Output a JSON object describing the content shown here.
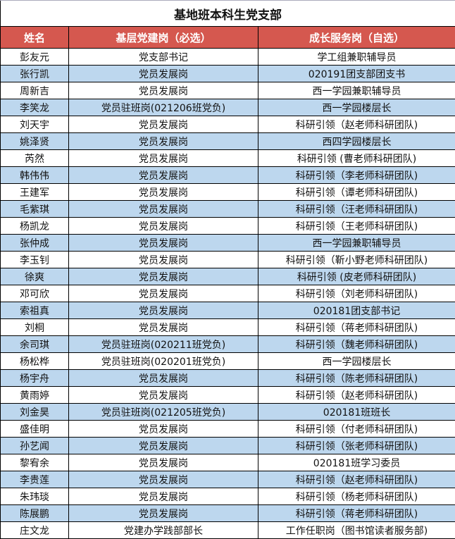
{
  "title": "基地班本科生党支部",
  "headers": [
    "姓名",
    "基层党建岗（必选）",
    "成长服务岗（自选）"
  ],
  "colors": {
    "header_bg": "#d5584f",
    "alt_row_bg": "#bdd7ee"
  },
  "rows": [
    [
      "彭友元",
      "党支部书记",
      "学工组兼职辅导员"
    ],
    [
      "张行凯",
      "党员发展岗",
      "020191团支部团支书"
    ],
    [
      "周新吉",
      "党员发展岗",
      "西一学园兼职辅导员"
    ],
    [
      "李笑龙",
      "党员驻班岗(021206班党负)",
      "西一学园楼层长"
    ],
    [
      "刘天宇",
      "党员发展岗",
      "科研引领（赵老师科研团队)"
    ],
    [
      "姚泽贤",
      "党员发展岗",
      "西四学园楼层长"
    ],
    [
      "芮然",
      "党员发展岗",
      "科研引领 (曹老师科研团队)"
    ],
    [
      "韩伟伟",
      "党员发展岗",
      "科研引领（李老师科研团队)"
    ],
    [
      "王建军",
      "党员发展岗",
      "科研引领（谭老师科研团队)"
    ],
    [
      "毛紫琪",
      "党员发展岗",
      "科研引领（汪老师科研团队)"
    ],
    [
      "杨凯龙",
      "党员发展岗",
      "科研引领（王老师科研团队)"
    ],
    [
      "张仲成",
      "党员发展岗",
      "西一学园兼职辅导员"
    ],
    [
      "李玉钊",
      "党员发展岗",
      "科研引领（靳小野老师科研团队)"
    ],
    [
      "徐爽",
      "党员发展岗",
      "科研引领 (皮老师科研团队)"
    ],
    [
      "邓可欣",
      "党员发展岗",
      "科研引领（刘老师科研团队)"
    ],
    [
      "索祖真",
      "党员发展岗",
      "020181团支部书记"
    ],
    [
      "刘桐",
      "党员发展岗",
      "科研引领（蒋老师科研团队)"
    ],
    [
      "余司琪",
      "党员驻班岗(020211班党负)",
      "科研引领（魏老师科研团队)"
    ],
    [
      "杨松桦",
      "党员驻班岗(020201班党负)",
      "西一学园楼层长"
    ],
    [
      "杨宇舟",
      "党员发展岗",
      "科研引领（陈老师科研团队)"
    ],
    [
      "黄雨婷",
      "党员发展岗",
      "科研引领（赵老师科研团队)"
    ],
    [
      "刘金昊",
      "党员驻班岗(021205班党负)",
      "020181班班长"
    ],
    [
      "盛佳明",
      "党员发展岗",
      "科研引领（付老师科研团队)"
    ],
    [
      "孙艺闻",
      "党员发展岗",
      "科研引领（张老师科研团队)"
    ],
    [
      "黎宥余",
      "党员发展岗",
      "020181班学习委员"
    ],
    [
      "李贵莲",
      "党员发展岗",
      "科研引领（赵老师科研团队)"
    ],
    [
      "朱玮琰",
      "党员发展岗",
      "科研引领（杨老师科研团队)"
    ],
    [
      "陈展鹏",
      "党员发展岗",
      "科研引领（蒋老师科研团队)"
    ],
    [
      "庄文龙",
      "党建办学践部部长",
      "工作任职岗（图书馆读者服务部)"
    ]
  ]
}
